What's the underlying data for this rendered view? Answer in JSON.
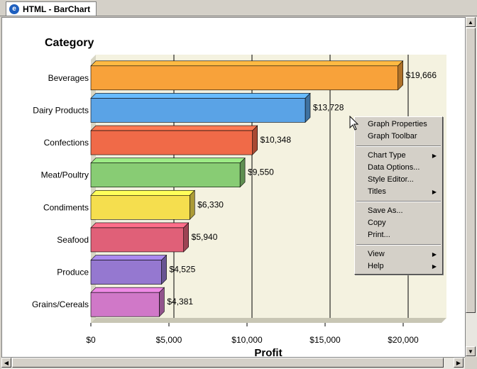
{
  "tab": {
    "title": "HTML - BarChart",
    "icon": "ie-page-icon"
  },
  "chart_data": {
    "type": "bar",
    "orientation": "horizontal",
    "title": "Category",
    "xlabel": "Profit",
    "categories": [
      "Beverages",
      "Dairy Products",
      "Confections",
      "Meat/Poultry",
      "Condiments",
      "Seafood",
      "Produce",
      "Grains/Cereals"
    ],
    "values": [
      19666,
      13728,
      10348,
      9550,
      6330,
      5940,
      4525,
      4381
    ],
    "value_labels": [
      "$19,666",
      "$13,728",
      "$10,348",
      "$9,550",
      "$6,330",
      "$5,940",
      "$4,525",
      "$4,381"
    ],
    "colors": [
      "#f8a23a",
      "#5aa3e6",
      "#f06a48",
      "#88cc74",
      "#f5de4e",
      "#e06078",
      "#9578d0",
      "#d078c8"
    ],
    "xlim": [
      0,
      23000
    ],
    "ticks": [
      0,
      5000,
      10000,
      15000,
      20000
    ],
    "tick_labels": [
      "$0",
      "$5,000",
      "$10,000",
      "$15,000",
      "$20,000"
    ],
    "grid": true,
    "background": "#f4f2e0"
  },
  "context_menu": {
    "groups": [
      [
        {
          "label": "Graph Properties",
          "submenu": false
        },
        {
          "label": "Graph Toolbar",
          "submenu": false
        }
      ],
      [
        {
          "label": "Chart Type",
          "submenu": true
        },
        {
          "label": "Data Options...",
          "submenu": false
        },
        {
          "label": "Style Editor...",
          "submenu": false
        },
        {
          "label": "Titles",
          "submenu": true
        }
      ],
      [
        {
          "label": "Save As...",
          "submenu": false
        },
        {
          "label": "Copy",
          "submenu": false
        },
        {
          "label": "Print...",
          "submenu": false
        }
      ],
      [
        {
          "label": "View",
          "submenu": true
        },
        {
          "label": "Help",
          "submenu": true
        }
      ]
    ]
  }
}
